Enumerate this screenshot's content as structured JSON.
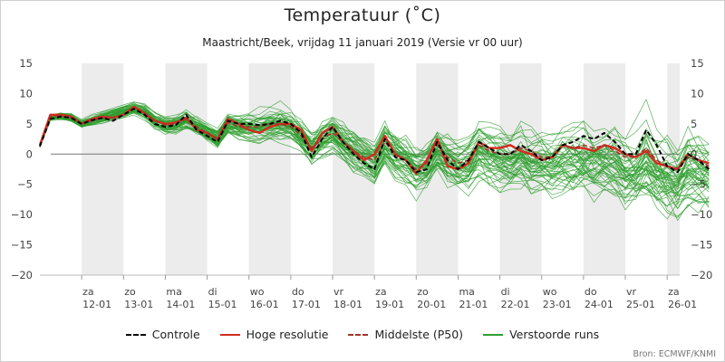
{
  "title": "Temperatuur (˚C)",
  "subtitle": "Maastricht/Beek, vrijdag 11 januari 2019 (Versie vr 00 uur)",
  "source": "Bron: ECMWF/KNMI",
  "colors": {
    "controle": "#000000",
    "hoge_resolutie": "#d42a1e",
    "middelste": "#a0352b",
    "verstoorde": "#2e9e2e",
    "weekend_band": "#ececec",
    "zero_line": "#777777"
  },
  "legend": [
    {
      "key": "controle",
      "label": "Controle",
      "style": "dashed"
    },
    {
      "key": "hoge_resolutie",
      "label": "Hoge resolutie",
      "style": "solid"
    },
    {
      "key": "middelste",
      "label": "Middelste (P50)",
      "style": "dashed"
    },
    {
      "key": "verstoorde",
      "label": "Verstoorde runs",
      "style": "solid"
    }
  ],
  "chart_data": {
    "type": "line",
    "title": "Temperatuur (˚C)",
    "subtitle": "Maastricht/Beek, vrijdag 11 januari 2019 (Versie vr 00 uur)",
    "ylabel": "",
    "ylim": [
      -20,
      15
    ],
    "yticks": [
      15,
      10,
      5,
      0,
      -5,
      -10,
      -15,
      -20
    ],
    "x_unit": "days since 11-01-2019 00 uur",
    "xlim": [
      0,
      15.3
    ],
    "step_days": 0.25,
    "day_ticks": [
      {
        "day": 1,
        "wd": "za",
        "date": "12-01"
      },
      {
        "day": 2,
        "wd": "zo",
        "date": "13-01"
      },
      {
        "day": 3,
        "wd": "ma",
        "date": "14-01"
      },
      {
        "day": 4,
        "wd": "di",
        "date": "15-01"
      },
      {
        "day": 5,
        "wd": "wo",
        "date": "16-01"
      },
      {
        "day": 6,
        "wd": "do",
        "date": "17-01"
      },
      {
        "day": 7,
        "wd": "vr",
        "date": "18-01"
      },
      {
        "day": 8,
        "wd": "za",
        "date": "19-01"
      },
      {
        "day": 9,
        "wd": "zo",
        "date": "20-01"
      },
      {
        "day": 10,
        "wd": "ma",
        "date": "21-01"
      },
      {
        "day": 11,
        "wd": "di",
        "date": "22-01"
      },
      {
        "day": 12,
        "wd": "wo",
        "date": "23-01"
      },
      {
        "day": 13,
        "wd": "do",
        "date": "24-01"
      },
      {
        "day": 14,
        "wd": "vr",
        "date": "25-01"
      },
      {
        "day": 15,
        "wd": "za",
        "date": "26-01"
      }
    ],
    "shaded_bands": [
      [
        1,
        2
      ],
      [
        3,
        4
      ],
      [
        5,
        6
      ],
      [
        7,
        8
      ],
      [
        9,
        10
      ],
      [
        11,
        12
      ],
      [
        13,
        14
      ],
      [
        15,
        15.3
      ]
    ],
    "series": [
      {
        "name": "Controle",
        "key": "controle",
        "values": [
          1.3,
          5.8,
          6.2,
          6.0,
          5.0,
          5.6,
          6.0,
          5.5,
          6.5,
          7.5,
          6.5,
          5.0,
          4.5,
          4.8,
          6.5,
          4.0,
          3.0,
          2.0,
          5.5,
          5.0,
          5.0,
          4.8,
          5.0,
          5.5,
          5.0,
          3.5,
          -0.5,
          2.5,
          4.5,
          2.0,
          0.0,
          -1.5,
          -2.5,
          2.5,
          -0.5,
          -1.0,
          -3.0,
          -2.5,
          2.0,
          -1.0,
          -2.5,
          -1.0,
          2.0,
          1.0,
          0.0,
          0.0,
          1.5,
          0.5,
          -1.0,
          -0.5,
          1.5,
          2.0,
          3.0,
          2.5,
          3.5,
          2.0,
          0.0,
          0.0,
          4.0,
          1.5,
          -2.0,
          -3.0,
          0.0,
          -1.0,
          -2.5
        ]
      },
      {
        "name": "Hoge resolutie",
        "key": "hoge_resolutie",
        "values": [
          1.5,
          6.5,
          6.5,
          6.2,
          5.0,
          5.8,
          6.2,
          6.0,
          6.5,
          7.8,
          6.8,
          5.5,
          5.0,
          5.2,
          6.0,
          4.0,
          3.5,
          2.5,
          5.8,
          5.0,
          4.0,
          3.5,
          4.5,
          5.0,
          5.0,
          4.0,
          0.5,
          3.5,
          4.5,
          2.0,
          0.5,
          -1.0,
          0.0,
          3.0,
          0.0,
          -1.0,
          -3.2,
          -1.0,
          2.5,
          -2.0,
          -2.5,
          -1.5,
          2.0,
          1.0,
          1.0,
          1.5,
          0.5,
          0.0,
          -1.0,
          -0.5,
          1.5,
          1.0,
          1.0,
          0.5,
          1.5,
          1.0,
          0.0,
          -0.5,
          0.5,
          -1.5,
          -2.0,
          -2.5,
          0.0,
          -1.0,
          -1.5
        ]
      },
      {
        "name": "Middelste (P50)",
        "key": "middelste",
        "values": [
          1.3,
          6.2,
          6.3,
          6.0,
          5.0,
          5.5,
          6.0,
          6.0,
          6.5,
          7.5,
          6.8,
          5.5,
          4.8,
          5.0,
          5.8,
          4.5,
          3.5,
          2.5,
          5.2,
          4.5,
          4.5,
          4.5,
          5.0,
          5.0,
          4.5,
          3.0,
          1.0,
          2.5,
          3.5,
          2.0,
          0.5,
          -0.5,
          -1.0,
          2.0,
          0.0,
          -1.0,
          -2.5,
          -1.5,
          1.5,
          -0.5,
          -1.5,
          -1.0,
          1.5,
          0.5,
          0.0,
          0.0,
          1.0,
          0.5,
          -0.5,
          -0.5,
          1.5,
          1.0,
          1.5,
          1.0,
          1.5,
          0.5,
          -0.5,
          -0.5,
          1.0,
          -1.0,
          -2.0,
          -2.5,
          -0.5,
          -1.0,
          -2.0
        ]
      }
    ],
    "ensemble": {
      "name": "Verstoorde runs",
      "key": "verstoorde",
      "members": 51,
      "mean_values": [
        1.3,
        6.0,
        6.3,
        6.0,
        5.0,
        5.5,
        6.0,
        6.5,
        7.0,
        7.5,
        7.0,
        5.5,
        4.8,
        4.8,
        5.5,
        4.5,
        3.5,
        2.5,
        5.0,
        4.5,
        4.5,
        4.5,
        5.0,
        5.0,
        4.5,
        3.0,
        1.0,
        2.5,
        3.5,
        2.0,
        0.5,
        -0.5,
        -1.5,
        1.5,
        0.0,
        -1.0,
        -2.5,
        -2.0,
        0.5,
        -1.0,
        -2.0,
        -2.0,
        0.5,
        -0.5,
        -1.0,
        -1.5,
        -0.5,
        -1.5,
        -2.0,
        -2.0,
        -1.0,
        -1.0,
        -1.0,
        -1.5,
        -1.0,
        -1.5,
        -2.5,
        -3.0,
        -1.5,
        -3.0,
        -4.0,
        -4.5,
        -2.5,
        -3.0,
        -3.5
      ],
      "spread_values": [
        0.2,
        0.5,
        0.5,
        0.5,
        0.5,
        0.6,
        0.7,
        0.8,
        0.8,
        0.8,
        0.9,
        1.0,
        1.1,
        1.2,
        1.3,
        1.3,
        1.4,
        1.5,
        1.6,
        1.7,
        1.8,
        1.9,
        2.0,
        2.1,
        2.2,
        2.3,
        2.3,
        2.4,
        2.5,
        2.6,
        2.7,
        2.8,
        2.9,
        3.0,
        3.1,
        3.2,
        3.2,
        3.3,
        3.4,
        3.5,
        3.6,
        3.7,
        3.8,
        3.9,
        4.0,
        4.0,
        4.1,
        4.2,
        4.3,
        4.4,
        4.5,
        4.5,
        4.6,
        4.7,
        4.8,
        4.9,
        5.0,
        5.0,
        5.1,
        5.2,
        5.3,
        5.4,
        5.5,
        5.5,
        5.6
      ]
    }
  }
}
